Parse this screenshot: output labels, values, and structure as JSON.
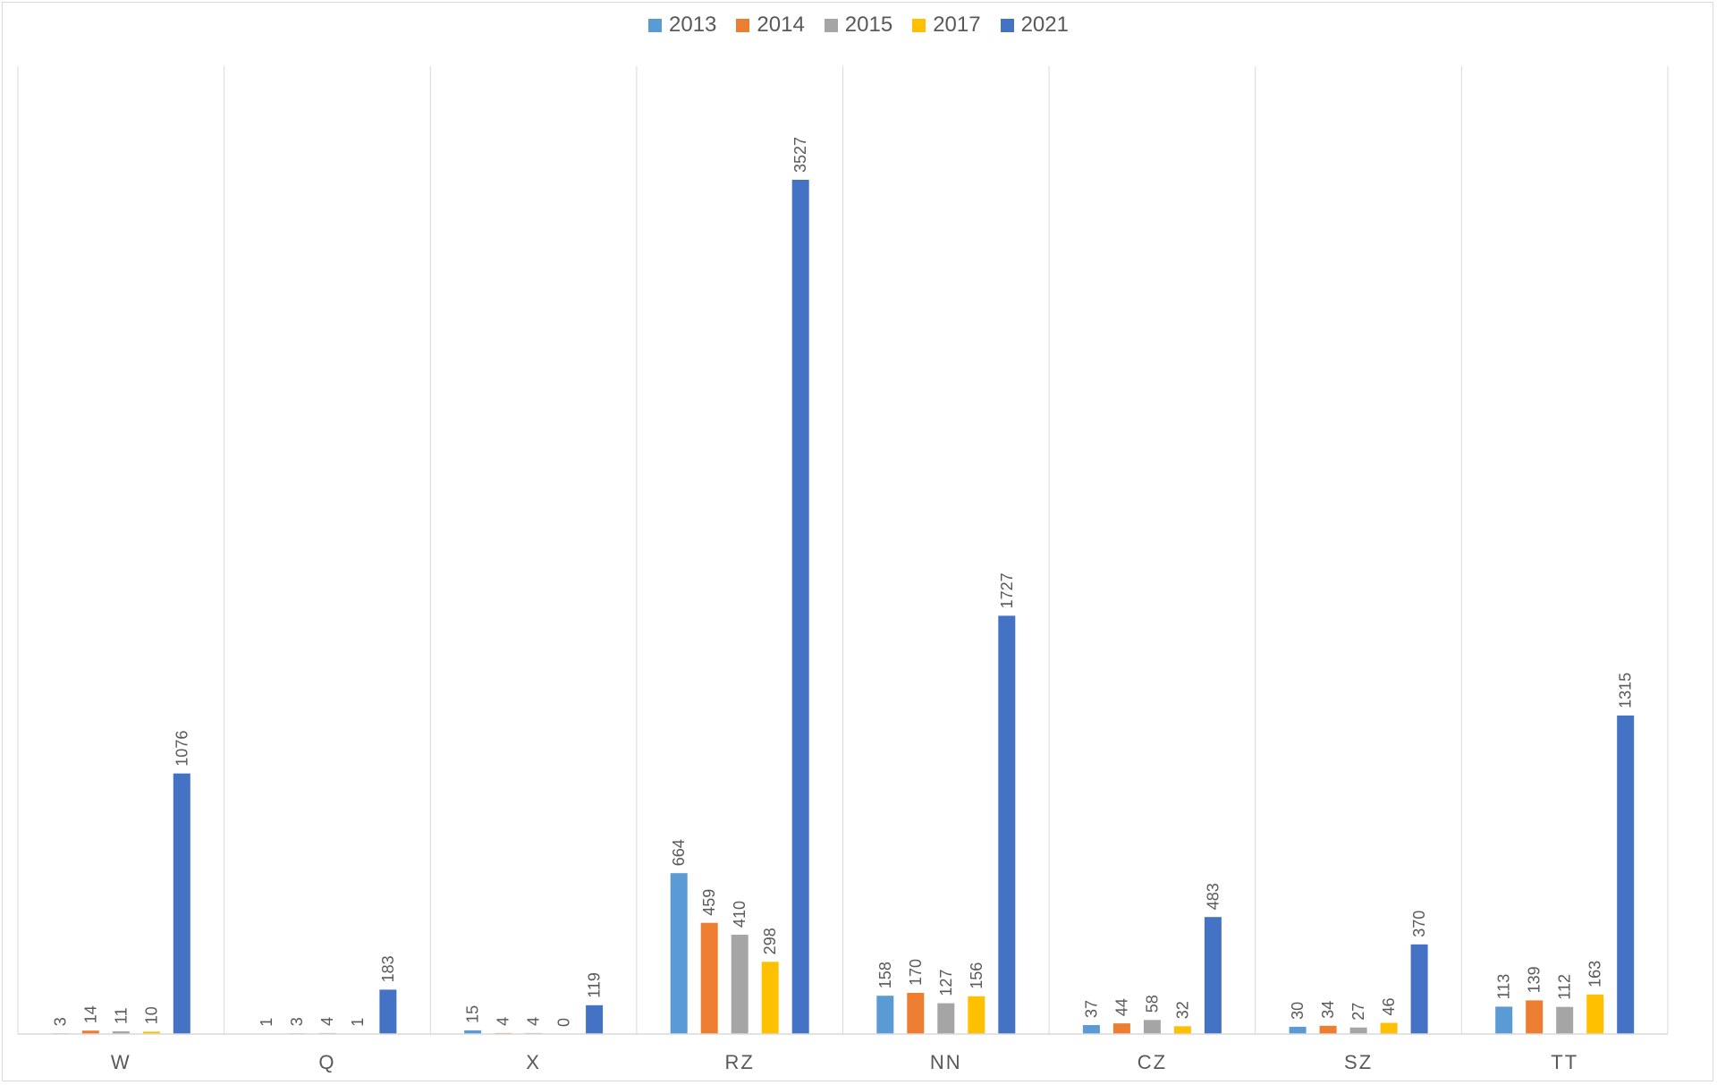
{
  "chart_data": {
    "type": "bar",
    "title": "",
    "xlabel": "",
    "ylabel": "",
    "categories": [
      "W",
      "Q",
      "X",
      "RZ",
      "NN",
      "CZ",
      "SZ",
      "TT"
    ],
    "series": [
      {
        "name": "2013",
        "color": "#5B9BD5",
        "values": [
          3,
          1,
          15,
          664,
          158,
          37,
          30,
          113
        ]
      },
      {
        "name": "2014",
        "color": "#ED7D31",
        "values": [
          14,
          3,
          4,
          459,
          170,
          44,
          34,
          139
        ]
      },
      {
        "name": "2015",
        "color": "#A5A5A5",
        "values": [
          11,
          4,
          4,
          410,
          127,
          58,
          27,
          112
        ]
      },
      {
        "name": "2017",
        "color": "#FFC000",
        "values": [
          10,
          1,
          0,
          298,
          156,
          32,
          46,
          163
        ]
      },
      {
        "name": "2021",
        "color": "#4472C4",
        "values": [
          1076,
          183,
          119,
          3527,
          1727,
          483,
          370,
          1315
        ]
      }
    ],
    "ylim": [
      0,
      4000
    ],
    "grid": "vertical category separators",
    "legend": "top-center",
    "data_labels": "rotated, above bars"
  }
}
